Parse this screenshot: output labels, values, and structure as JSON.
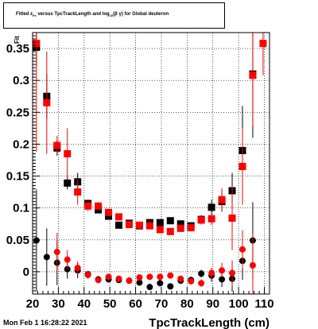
{
  "title_box": {
    "prefix": "Fitted z",
    "sub1": "Fe",
    "middle": " versus TpcTrackLength and log",
    "sub2": "10",
    "suffix": "(β γ) for Global deuteron"
  },
  "footer": {
    "date": "Mon Feb  1 16:28:22 2021"
  },
  "chart_data": {
    "type": "scatter",
    "title": "Fitted zFe versus TpcTrackLength and log10(β γ) for Global deuteron",
    "xlabel": "TpcTrackLength (cm)",
    "ylabel": "Fit",
    "xlim": [
      20,
      112
    ],
    "ylim": [
      -0.035,
      0.375
    ],
    "grid": true,
    "xticks": [
      20,
      30,
      40,
      50,
      60,
      70,
      80,
      90,
      100,
      110
    ],
    "xtick_labels": [
      "20",
      "30",
      "40",
      "50",
      "60",
      "70",
      "80",
      "90",
      "100",
      "110"
    ],
    "yticks": [
      0,
      0.05,
      0.1,
      0.15,
      0.2,
      0.25,
      0.3,
      0.35
    ],
    "ytick_labels": [
      "0",
      "0.05",
      "0.1",
      "0.15",
      "0.2",
      "0.25",
      "0.3",
      "0.35"
    ],
    "series": [
      {
        "marker": "square",
        "color": "#000000",
        "points": [
          [
            21.5,
            0.352,
            0.03
          ],
          [
            25.5,
            0.275,
            0.035
          ],
          [
            29.5,
            0.194,
            0.012
          ],
          [
            33.5,
            0.139,
            0.01
          ],
          [
            37.5,
            0.141,
            0.014
          ],
          [
            41.5,
            0.107,
            0.006
          ],
          [
            45.5,
            0.097,
            0.005
          ],
          [
            49.5,
            0.087,
            0.004
          ],
          [
            53.5,
            0.073,
            0.003
          ],
          [
            57.5,
            0.076,
            0.003
          ],
          [
            61.5,
            0.072,
            0.003
          ],
          [
            65.5,
            0.077,
            0.003
          ],
          [
            69.5,
            0.077,
            0.003
          ],
          [
            73.5,
            0.08,
            0.003
          ],
          [
            77.5,
            0.075,
            0.004
          ],
          [
            81.5,
            0.072,
            0.005
          ],
          [
            85.5,
            0.082,
            0.007
          ],
          [
            89.5,
            0.101,
            0.012
          ],
          [
            93.5,
            0.11,
            0.016
          ],
          [
            97.5,
            0.127,
            0.028
          ],
          [
            101.5,
            0.19,
            0.07
          ],
          [
            105.5,
            0.31,
            0.1
          ]
        ]
      },
      {
        "marker": "square",
        "color": "#ff0000",
        "points": [
          [
            21.5,
            0.358,
            0.17
          ],
          [
            25.5,
            0.265,
            0.08
          ],
          [
            29.5,
            0.198,
            0.015
          ],
          [
            33.5,
            0.185,
            0.04
          ],
          [
            37.5,
            0.125,
            0.02
          ],
          [
            41.5,
            0.103,
            0.008
          ],
          [
            45.5,
            0.103,
            0.006
          ],
          [
            49.5,
            0.093,
            0.005
          ],
          [
            53.5,
            0.086,
            0.004
          ],
          [
            57.5,
            0.074,
            0.004
          ],
          [
            61.5,
            0.073,
            0.004
          ],
          [
            65.5,
            0.072,
            0.004
          ],
          [
            69.5,
            0.066,
            0.004
          ],
          [
            73.5,
            0.063,
            0.004
          ],
          [
            77.5,
            0.068,
            0.004
          ],
          [
            81.5,
            0.069,
            0.005
          ],
          [
            85.5,
            0.081,
            0.007
          ],
          [
            89.5,
            0.083,
            0.01
          ],
          [
            93.5,
            0.113,
            0.018
          ],
          [
            97.5,
            0.084,
            0.05
          ],
          [
            101.5,
            0.165,
            0.06
          ],
          [
            105.5,
            0.308,
            0.08
          ],
          [
            109.5,
            0.358,
            0.05
          ]
        ]
      },
      {
        "marker": "circle",
        "color": "#000000",
        "points": [
          [
            21.5,
            0.049,
            0.08
          ],
          [
            25.5,
            0.023,
            0.045
          ],
          [
            29.5,
            0.014,
            0.035
          ],
          [
            33.5,
            0.004,
            0.015
          ],
          [
            37.5,
            0.002,
            0.012
          ],
          [
            41.5,
            -0.004,
            0.005
          ],
          [
            45.5,
            -0.012,
            0.005
          ],
          [
            49.5,
            -0.012,
            0.004
          ],
          [
            53.5,
            -0.013,
            0.004
          ],
          [
            57.5,
            -0.014,
            0.004
          ],
          [
            61.5,
            -0.017,
            0.004
          ],
          [
            65.5,
            -0.024,
            0.004
          ],
          [
            69.5,
            -0.018,
            0.004
          ],
          [
            73.5,
            -0.023,
            0.004
          ],
          [
            77.5,
            -0.014,
            0.004
          ],
          [
            81.5,
            -0.013,
            0.005
          ],
          [
            85.5,
            -0.003,
            0.006
          ],
          [
            89.5,
            -0.006,
            0.01
          ],
          [
            93.5,
            -0.012,
            0.012
          ],
          [
            97.5,
            -0.011,
            0.02
          ],
          [
            101.5,
            0.017,
            0.03
          ],
          [
            105.5,
            0.049,
            0.06
          ]
        ]
      },
      {
        "marker": "circle",
        "color": "#ff0000",
        "points": [
          [
            29.5,
            0.031,
            0.03
          ],
          [
            33.5,
            0.019,
            0.015
          ],
          [
            37.5,
            0.006,
            0.01
          ],
          [
            41.5,
            -0.005,
            0.006
          ],
          [
            45.5,
            -0.013,
            0.005
          ],
          [
            49.5,
            -0.008,
            0.004
          ],
          [
            53.5,
            -0.011,
            0.004
          ],
          [
            57.5,
            -0.014,
            0.004
          ],
          [
            61.5,
            -0.009,
            0.004
          ],
          [
            65.5,
            -0.008,
            0.004
          ],
          [
            69.5,
            -0.008,
            0.004
          ],
          [
            73.5,
            -0.006,
            0.004
          ],
          [
            77.5,
            -0.011,
            0.004
          ],
          [
            81.5,
            -0.015,
            0.005
          ],
          [
            85.5,
            -0.018,
            0.006
          ],
          [
            89.5,
            -0.002,
            0.008
          ],
          [
            93.5,
            0.002,
            0.012
          ],
          [
            97.5,
            -0.002,
            0.02
          ],
          [
            101.5,
            0.035,
            0.03
          ],
          [
            105.5,
            0.01,
            0.05
          ]
        ]
      }
    ]
  }
}
